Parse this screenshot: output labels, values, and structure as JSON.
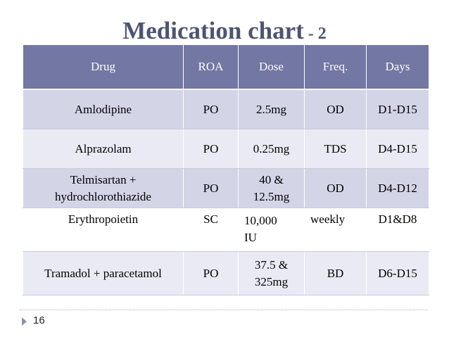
{
  "title": {
    "main": "Medication chart",
    "sub": " - 2"
  },
  "table": {
    "headers": [
      "Drug",
      "ROA",
      "Dose",
      "Freq.",
      "Days"
    ],
    "rows": [
      {
        "drug": "Amlodipine",
        "roa": "PO",
        "dose": "2.5mg",
        "freq": "OD",
        "days": "D1-D15"
      },
      {
        "drug": "Alprazolam",
        "roa": "PO",
        "dose": "0.25mg",
        "freq": "TDS",
        "days": "D4-D15"
      },
      {
        "drug_line1": "Telmisartan +",
        "drug_line2": "hydrochlorothiazide",
        "roa": "PO",
        "dose_line1": "40 &",
        "dose_line2": "12.5mg",
        "freq": "OD",
        "days": "D4-D12"
      },
      {
        "drug": "Erythropoietin",
        "roa": "SC",
        "dose_line1": "10,000",
        "dose_line2": "IU",
        "freq": "weekly",
        "days": "D1&D8"
      },
      {
        "drug": "Tramadol + paracetamol",
        "roa": "PO",
        "dose_line1": "37.5 &",
        "dose_line2": "325mg",
        "freq": "BD",
        "days": "D6-D15"
      }
    ]
  },
  "footer": {
    "slide_number": "16"
  }
}
